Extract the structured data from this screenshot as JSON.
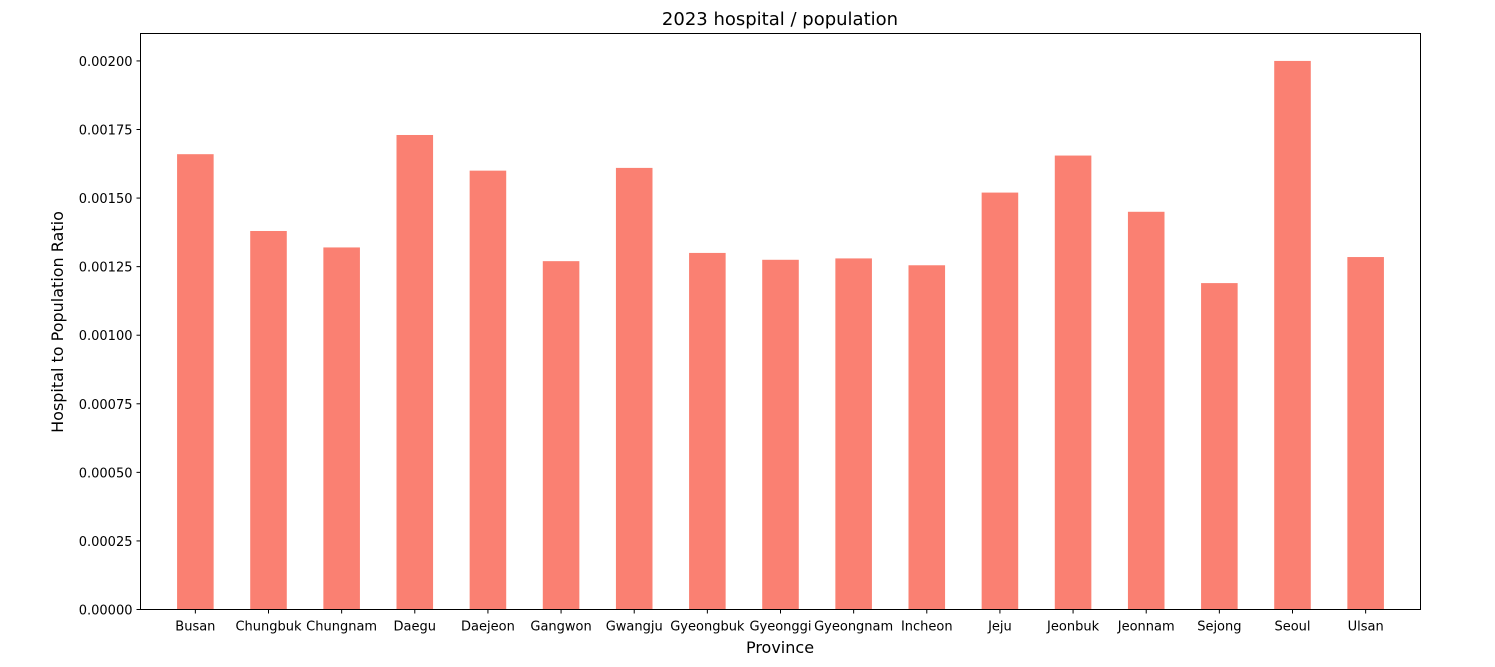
{
  "chart_data": {
    "type": "bar",
    "title": "2023 hospital / population",
    "xlabel": "Province",
    "ylabel": "Hospital to Population Ratio",
    "categories": [
      "Busan",
      "Chungbuk",
      "Chungnam",
      "Daegu",
      "Daejeon",
      "Gangwon",
      "Gwangju",
      "Gyeongbuk",
      "Gyeonggi",
      "Gyeongnam",
      "Incheon",
      "Jeju",
      "Jeonbuk",
      "Jeonnam",
      "Sejong",
      "Seoul",
      "Ulsan"
    ],
    "values": [
      0.00166,
      0.00138,
      0.00132,
      0.00173,
      0.0016,
      0.00127,
      0.00161,
      0.0013,
      0.001275,
      0.00128,
      0.001255,
      0.00152,
      0.001655,
      0.00145,
      0.00119,
      0.002,
      0.001285
    ],
    "ylim": [
      0,
      0.0021
    ],
    "yticks": [
      "0.00000",
      "0.00025",
      "0.00050",
      "0.00075",
      "0.00100",
      "0.00125",
      "0.00150",
      "0.00175",
      "0.00200"
    ],
    "ytick_values": [
      0,
      0.00025,
      0.0005,
      0.00075,
      0.001,
      0.00125,
      0.0015,
      0.00175,
      0.002
    ],
    "bar_color": "#fa8072",
    "grid": false,
    "legend": "none"
  }
}
